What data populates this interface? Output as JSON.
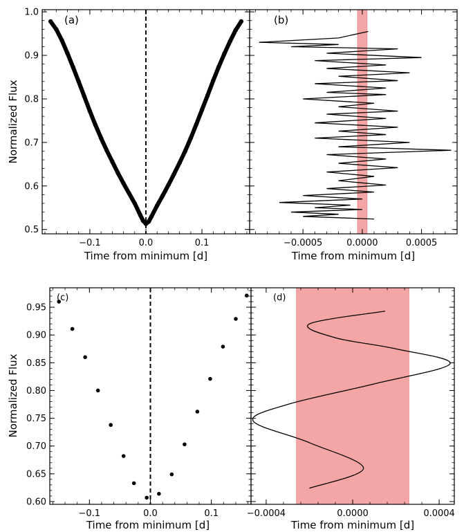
{
  "figure": {
    "panels": [
      "a",
      "b",
      "c",
      "d"
    ]
  },
  "chart_data": [
    {
      "id": "a",
      "type": "scatter",
      "panel_label": "(a)",
      "xlabel": "Time from minimum [d]",
      "ylabel": "Normalized Flux",
      "xlim": [
        -0.185,
        0.185
      ],
      "ylim": [
        0.49,
        1.005
      ],
      "xticks": [
        -0.1,
        0.0,
        0.1
      ],
      "xtick_labels": [
        "−0.1",
        "0.0",
        "0.1"
      ],
      "yticks": [
        0.5,
        0.6,
        0.7,
        0.8,
        0.9,
        1.0
      ],
      "ytick_labels": [
        "0.5",
        "0.6",
        "0.7",
        "0.8",
        "0.9",
        "1.0"
      ],
      "vline_x": 0.0,
      "vline_style": "dashed",
      "marker_color": "#000000",
      "x": [
        -0.17,
        -0.16,
        -0.15,
        -0.14,
        -0.13,
        -0.12,
        -0.11,
        -0.1,
        -0.09,
        -0.08,
        -0.07,
        -0.06,
        -0.05,
        -0.04,
        -0.03,
        -0.02,
        -0.01,
        -0.005,
        0.0,
        0.005,
        0.01,
        0.02,
        0.03,
        0.04,
        0.05,
        0.06,
        0.07,
        0.08,
        0.09,
        0.1,
        0.11,
        0.12,
        0.13,
        0.14,
        0.15,
        0.16,
        0.17
      ],
      "y": [
        0.978,
        0.96,
        0.935,
        0.905,
        0.873,
        0.84,
        0.806,
        0.772,
        0.74,
        0.71,
        0.682,
        0.656,
        0.63,
        0.606,
        0.583,
        0.56,
        0.533,
        0.52,
        0.513,
        0.518,
        0.53,
        0.555,
        0.578,
        0.602,
        0.627,
        0.653,
        0.68,
        0.71,
        0.742,
        0.775,
        0.808,
        0.842,
        0.874,
        0.904,
        0.932,
        0.958,
        0.978
      ]
    },
    {
      "id": "b",
      "type": "line",
      "panel_label": "(b)",
      "xlabel": "Time from minimum [d]",
      "ylabel": "",
      "xlim": [
        -0.00095,
        0.0008
      ],
      "ylim": [
        0.49,
        1.005
      ],
      "xticks": [
        -0.0005,
        0.0,
        0.0005
      ],
      "xtick_labels": [
        "−0.0005",
        "0.0000",
        "0.0005"
      ],
      "yticks": [
        0.5,
        0.6,
        0.7,
        0.8,
        0.9,
        1.0
      ],
      "shaded_band_x": [
        -4e-05,
        4e-05
      ],
      "band_color": "#f4a5a5",
      "line_color": "#000000",
      "x": [
        5e-05,
        -0.0002,
        -0.00087,
        -0.0002,
        -0.0006,
        0.0003,
        -0.0003,
        0.0005,
        -0.0004,
        0.0002,
        -0.0003,
        0.0004,
        -0.0002,
        0.0003,
        -0.0004,
        0.0002,
        -0.0003,
        0.0002,
        -0.0005,
        0.0001,
        -0.0002,
        0.0003,
        -0.0003,
        0.0002,
        -0.0004,
        0.0003,
        -0.0002,
        0.0002,
        -0.0004,
        0.0004,
        -0.0002,
        0.00075,
        -0.0003,
        0.0002,
        -0.0002,
        0.0003,
        -0.0003,
        0.0001,
        -0.0002,
        0.0002,
        -0.0003,
        0.0001,
        -0.0005,
        0.0,
        -0.0007,
        -0.0001,
        -0.0004,
        0.0,
        -0.0006,
        -0.0002,
        -0.0005,
        0.0001
      ],
      "y": [
        0.955,
        0.94,
        0.93,
        0.925,
        0.92,
        0.915,
        0.905,
        0.895,
        0.888,
        0.878,
        0.87,
        0.86,
        0.852,
        0.842,
        0.835,
        0.825,
        0.815,
        0.81,
        0.8,
        0.79,
        0.782,
        0.772,
        0.765,
        0.755,
        0.745,
        0.735,
        0.726,
        0.718,
        0.71,
        0.7,
        0.69,
        0.682,
        0.672,
        0.662,
        0.652,
        0.642,
        0.632,
        0.622,
        0.612,
        0.602,
        0.594,
        0.586,
        0.578,
        0.57,
        0.562,
        0.556,
        0.55,
        0.546,
        0.54,
        0.535,
        0.53,
        0.524
      ]
    },
    {
      "id": "c",
      "type": "scatter",
      "panel_label": "(c)",
      "xlabel": "Time from minimum [d]",
      "ylabel": "Normalized Flux",
      "xlim": [
        -0.165,
        0.165
      ],
      "ylim": [
        0.595,
        0.985
      ],
      "xticks": [
        -0.1,
        0.0,
        0.1
      ],
      "xtick_labels": [
        "−0.1",
        "0.0",
        "0.1"
      ],
      "yticks": [
        0.6,
        0.65,
        0.7,
        0.75,
        0.8,
        0.85,
        0.9,
        0.95
      ],
      "ytick_labels": [
        "0.60",
        "0.65",
        "0.70",
        "0.75",
        "0.80",
        "0.85",
        "0.90",
        "0.95"
      ],
      "vline_x": 0.0,
      "vline_style": "dashed",
      "marker_color": "#000000",
      "x": [
        -0.15,
        -0.128,
        -0.107,
        -0.086,
        -0.065,
        -0.044,
        -0.027,
        -0.006,
        0.014,
        0.035,
        0.056,
        0.077,
        0.098,
        0.119,
        0.14,
        0.158
      ],
      "y": [
        0.96,
        0.911,
        0.86,
        0.8,
        0.738,
        0.682,
        0.633,
        0.607,
        0.614,
        0.649,
        0.703,
        0.762,
        0.821,
        0.879,
        0.929,
        0.971
      ]
    },
    {
      "id": "d",
      "type": "line",
      "panel_label": "(d)",
      "xlabel": "Time from minimum [d]",
      "ylabel": "",
      "xlim": [
        -0.00047,
        0.00047
      ],
      "ylim": [
        0.595,
        0.985
      ],
      "xticks": [
        -0.0004,
        0.0,
        0.0004
      ],
      "xtick_labels": [
        "−0.0004",
        "0.0000",
        "0.0004"
      ],
      "yticks": [
        0.6,
        0.65,
        0.7,
        0.75,
        0.8,
        0.85,
        0.9,
        0.95
      ],
      "shaded_band_x": [
        -0.00026,
        0.00026
      ],
      "band_color": "#f4a5a5",
      "line_color": "#000000",
      "x": [
        0.00015,
        -0.0002,
        -8e-05,
        0.0002,
        0.00045,
        0.0001,
        -0.0003,
        -0.00046,
        -0.0002,
        5e-05,
        -0.0002
      ],
      "y": [
        0.943,
        0.92,
        0.895,
        0.875,
        0.848,
        0.812,
        0.775,
        0.745,
        0.706,
        0.66,
        0.624
      ]
    }
  ]
}
